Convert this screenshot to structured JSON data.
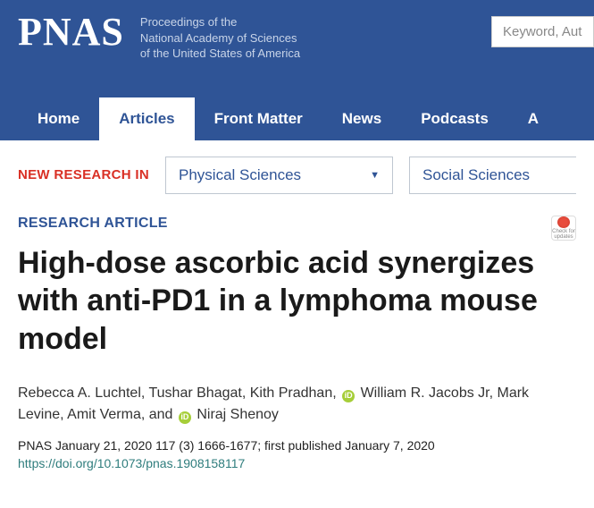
{
  "header": {
    "logo": "PNAS",
    "tagline_l1": "Proceedings of the",
    "tagline_l2": "National Academy of Sciences",
    "tagline_l3": "of the United States of America",
    "search_placeholder": "Keyword, Aut"
  },
  "nav": {
    "items": [
      "Home",
      "Articles",
      "Front Matter",
      "News",
      "Podcasts",
      "A"
    ],
    "active_index": 1
  },
  "categories": {
    "label": "NEW RESEARCH IN",
    "dropdown1": "Physical Sciences",
    "dropdown2": "Social Sciences"
  },
  "article": {
    "type": "RESEARCH ARTICLE",
    "title": "High-dose ascorbic acid synergizes with anti-PD1 in a lymphoma mouse model",
    "authors_pre": "Rebecca A. Luchtel, Tushar Bhagat, Kith Pradhan, ",
    "author_orcid1": "William R. Jacobs Jr",
    "authors_mid": ", Mark Levine, Amit Verma, and ",
    "author_orcid2": "Niraj Shenoy",
    "pub_info": "PNAS January 21, 2020 117 (3) 1666-1677; first published January 7, 2020",
    "doi": "https://doi.org/10.1073/pnas.1908158117",
    "check_label": "Check for updates"
  },
  "colors": {
    "header_bg": "#2f5496",
    "accent_red": "#d93025",
    "link_blue": "#2f5496",
    "doi_teal": "#2f7d7d",
    "orcid_green": "#a6ce39"
  }
}
